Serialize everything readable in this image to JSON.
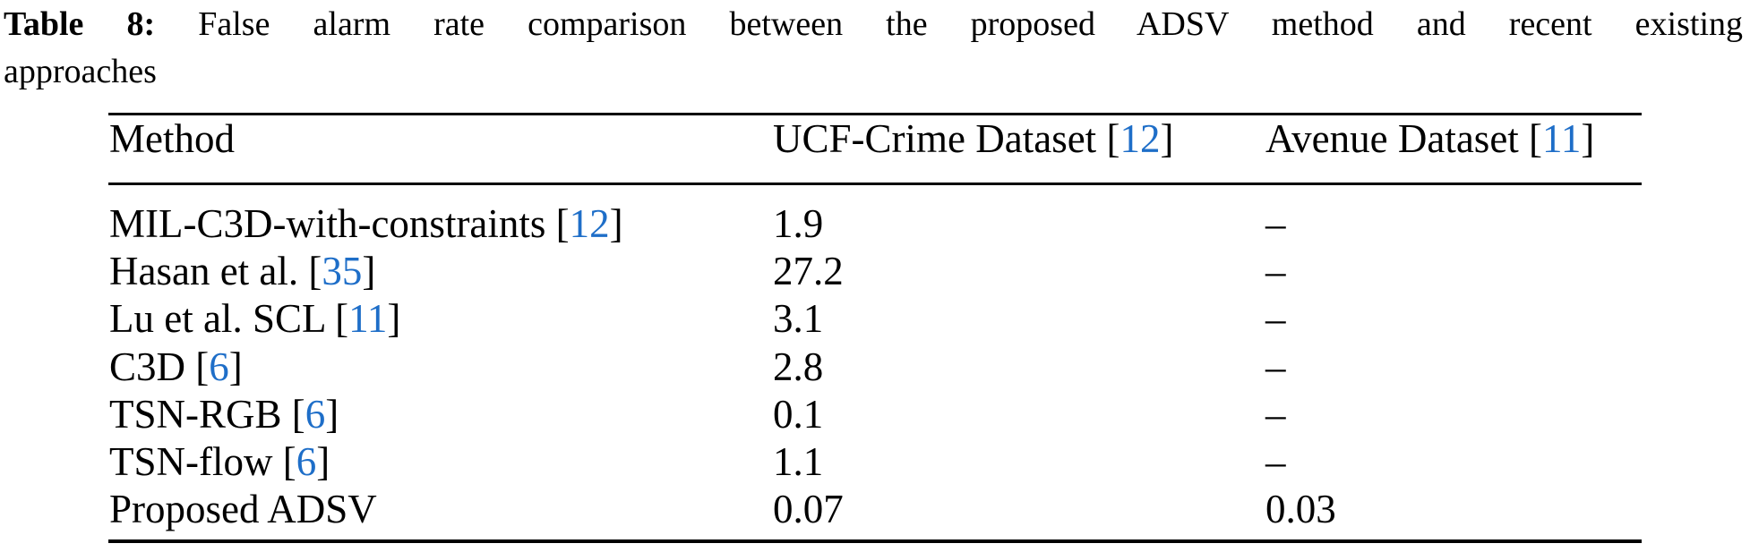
{
  "caption": {
    "label": "Table 8:",
    "line1_rest": "False alarm rate comparison between the proposed ADSV method and recent existing",
    "line2": "approaches"
  },
  "colors": {
    "citation_blue": "#1e6ec8",
    "text": "#000000",
    "background": "#ffffff"
  },
  "table": {
    "headers": {
      "method": "Method",
      "col2": {
        "label": "UCF-Crime Dataset",
        "br_open": "[",
        "cite": "12",
        "br_close": "]"
      },
      "col3": {
        "label": "Avenue Dataset",
        "br_open": "[",
        "cite": "11",
        "br_close": "]"
      }
    },
    "rows": [
      {
        "method": "MIL-C3D-with-constraints",
        "br_open": "[",
        "cite": "12",
        "br_close": "]",
        "ucf": "1.9",
        "avenue": "–"
      },
      {
        "method": "Hasan et al.",
        "br_open": "[",
        "cite": "35",
        "br_close": "]",
        "ucf": "27.2",
        "avenue": "–"
      },
      {
        "method": "Lu et al. SCL",
        "br_open": "[",
        "cite": "11",
        "br_close": "]",
        "ucf": "3.1",
        "avenue": "–"
      },
      {
        "method": "C3D",
        "br_open": "[",
        "cite": "6",
        "br_close": "]",
        "ucf": "2.8",
        "avenue": "–"
      },
      {
        "method": "TSN-RGB",
        "br_open": "[",
        "cite": "6",
        "br_close": "]",
        "ucf": "0.1",
        "avenue": "–"
      },
      {
        "method": "TSN-flow",
        "br_open": "[",
        "cite": "6",
        "br_close": "]",
        "ucf": "1.1",
        "avenue": "–"
      },
      {
        "method": "Proposed ADSV",
        "br_open": "",
        "cite": "",
        "br_close": "",
        "ucf": "0.07",
        "avenue": "0.03"
      }
    ]
  }
}
